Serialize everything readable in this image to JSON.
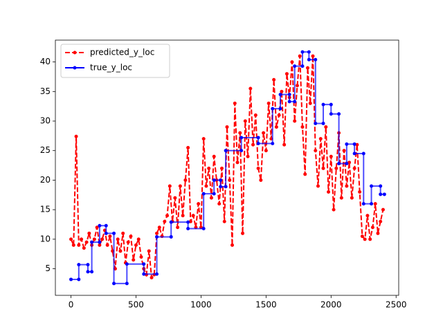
{
  "chart_data": {
    "type": "line",
    "xlim": [
      -120,
      2520
    ],
    "xticks": [
      0,
      500,
      1000,
      1500,
      2000,
      2500
    ],
    "ylim": [
      0.5,
      43.7
    ],
    "yticks": [
      5,
      10,
      15,
      20,
      25,
      30,
      35,
      40
    ],
    "legend": "upper left",
    "series": [
      {
        "name": "predicted_y_loc",
        "color": "#ff0000",
        "dashed": true,
        "x": [
          0,
          20,
          40,
          60,
          80,
          100,
          120,
          140,
          160,
          180,
          200,
          220,
          240,
          260,
          280,
          300,
          320,
          340,
          360,
          380,
          400,
          420,
          440,
          460,
          480,
          500,
          520,
          540,
          560,
          580,
          600,
          620,
          640,
          660,
          680,
          700,
          720,
          740,
          760,
          780,
          800,
          820,
          840,
          860,
          880,
          900,
          920,
          940,
          960,
          980,
          1000,
          1020,
          1040,
          1060,
          1080,
          1100,
          1120,
          1140,
          1160,
          1180,
          1200,
          1220,
          1240,
          1260,
          1280,
          1300,
          1320,
          1340,
          1360,
          1380,
          1400,
          1420,
          1440,
          1460,
          1480,
          1500,
          1520,
          1540,
          1560,
          1580,
          1600,
          1620,
          1640,
          1660,
          1680,
          1700,
          1720,
          1740,
          1760,
          1780,
          1800,
          1820,
          1840,
          1860,
          1880,
          1900,
          1920,
          1940,
          1960,
          1980,
          2000,
          2020,
          2040,
          2060,
          2080,
          2100,
          2120,
          2140,
          2160,
          2180,
          2200,
          2220,
          2240,
          2260,
          2280,
          2300,
          2320,
          2340,
          2360,
          2380,
          2400
        ],
        "values": [
          10,
          9,
          27.4,
          9,
          10,
          8.5,
          9.5,
          11,
          9,
          10,
          12,
          9,
          10,
          11.5,
          9,
          10.5,
          8,
          5,
          10,
          8,
          11,
          6,
          9.5,
          10.5,
          6.5,
          9,
          10,
          7,
          5,
          4,
          8,
          3.5,
          4,
          11,
          12,
          10.5,
          13,
          14,
          19,
          13,
          17,
          12,
          19,
          14,
          20,
          25.5,
          13,
          14,
          12,
          16,
          12,
          27,
          19,
          22,
          17,
          24,
          20,
          16,
          22,
          13,
          29,
          20,
          9,
          33,
          23,
          28,
          11,
          30,
          24,
          35.5,
          26,
          31,
          22,
          20,
          28,
          25,
          33,
          27,
          37,
          29,
          31,
          35,
          26,
          38,
          34,
          40,
          30,
          36,
          41,
          29,
          21,
          39,
          33,
          41,
          25,
          19,
          27,
          22,
          29,
          18,
          24,
          15,
          22,
          28,
          17,
          25,
          19,
          23,
          17,
          22,
          26,
          18,
          10.5,
          10,
          14,
          10,
          12,
          16,
          11,
          13,
          15
        ]
      },
      {
        "name": "true_y_loc",
        "color": "#0000ff",
        "dashed": false,
        "x": [
          0,
          60,
          60,
          130,
          130,
          160,
          160,
          220,
          220,
          270,
          270,
          330,
          330,
          430,
          430,
          560,
          560,
          660,
          660,
          770,
          770,
          900,
          900,
          1020,
          1020,
          1100,
          1100,
          1150,
          1150,
          1190,
          1190,
          1310,
          1310,
          1440,
          1440,
          1550,
          1550,
          1610,
          1610,
          1680,
          1680,
          1720,
          1720,
          1780,
          1780,
          1830,
          1830,
          1880,
          1880,
          1940,
          1940,
          2000,
          2000,
          2060,
          2060,
          2120,
          2120,
          2180,
          2180,
          2250,
          2250,
          2310,
          2310,
          2380,
          2380,
          2410
        ],
        "values": [
          3.2,
          3.2,
          5.7,
          5.7,
          4.5,
          4.5,
          9.5,
          9.5,
          12.3,
          12.3,
          11,
          11,
          2.5,
          2.5,
          5.8,
          5.8,
          4.1,
          4.1,
          10.4,
          10.4,
          12.9,
          12.9,
          11.8,
          11.8,
          17.7,
          17.7,
          20,
          20,
          18.9,
          18.9,
          25,
          25,
          27.2,
          27.2,
          26.2,
          26.2,
          32.1,
          32.1,
          34.5,
          34.5,
          33.3,
          33.3,
          39.3,
          39.3,
          41.7,
          41.7,
          40.4,
          40.4,
          29.6,
          29.6,
          32.8,
          32.8,
          31.2,
          31.2,
          22.8,
          22.8,
          26.1,
          26.1,
          24.5,
          24.5,
          16,
          16,
          19,
          19,
          17.6,
          17.6
        ]
      }
    ]
  }
}
